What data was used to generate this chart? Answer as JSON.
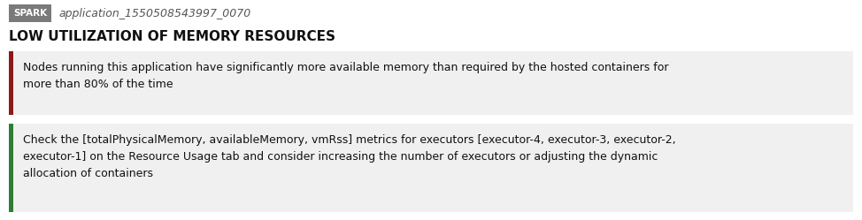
{
  "bg_color": "#ffffff",
  "spark_badge_color": "#7a7a7a",
  "spark_badge_text": "SPARK",
  "spark_badge_text_color": "#ffffff",
  "app_id_text": "application_1550508543997_0070",
  "app_id_color": "#555555",
  "title": "LOW UTILIZATION OF MEMORY RESOURCES",
  "title_color": "#111111",
  "box1_bg": "#f0f0f0",
  "box1_border_color": "#8b1a1a",
  "box1_text": "Nodes running this application have significantly more available memory than required by the hosted containers for\nmore than 80% of the time",
  "box2_bg": "#f0f0f0",
  "box2_border_color": "#2e7d32",
  "box2_text": "Check the [totalPhysicalMemory, availableMemory, vmRss] metrics for executors [executor-4, executor-3, executor-2,\nexecutor-1] on the Resource Usage tab and consider increasing the number of executors or adjusting the dynamic\nallocation of containers",
  "text_color": "#111111",
  "font_family": "DejaVu Sans"
}
